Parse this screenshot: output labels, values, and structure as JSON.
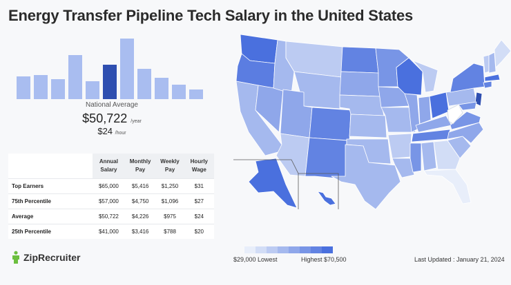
{
  "title": "Energy Transfer Pipeline Tech Salary in the United States",
  "histogram": {
    "values": [
      30,
      32,
      26,
      58,
      24,
      45,
      80,
      40,
      28,
      19,
      13
    ],
    "highlight_index": 5,
    "bar_color": "#a9bdf0",
    "highlight_color": "#2f4fb0"
  },
  "national_average": {
    "label": "National Average",
    "annual": "$50,722",
    "annual_unit": "/year",
    "hourly": "$24",
    "hourly_unit": "/hour"
  },
  "table": {
    "headers": [
      "Annual Salary",
      "Monthly Pay",
      "Weekly Pay",
      "Hourly Wage"
    ],
    "rows": [
      {
        "label": "Top Earners",
        "values": [
          "$65,000",
          "$5,416",
          "$1,250",
          "$31"
        ]
      },
      {
        "label": "75th Percentile",
        "values": [
          "$57,000",
          "$4,750",
          "$1,096",
          "$27"
        ]
      },
      {
        "label": "Average",
        "values": [
          "$50,722",
          "$4,226",
          "$975",
          "$24"
        ]
      },
      {
        "label": "25th Percentile",
        "values": [
          "$41,000",
          "$3,416",
          "$788",
          "$20"
        ]
      }
    ]
  },
  "logo": {
    "text": "ZipRecruiter",
    "icon": "ziprecruiter-person-icon",
    "color": "#6cbf3f"
  },
  "legend": {
    "colors": [
      "#e8eefa",
      "#d2ddf6",
      "#bccbf2",
      "#a5b9ee",
      "#8fa7ea",
      "#7895e6",
      "#6283e2",
      "#4a70de"
    ],
    "low_label": "$29,000 Lowest",
    "high_label": "Highest $70,500"
  },
  "last_updated": "Last Updated : January 21, 2024"
}
